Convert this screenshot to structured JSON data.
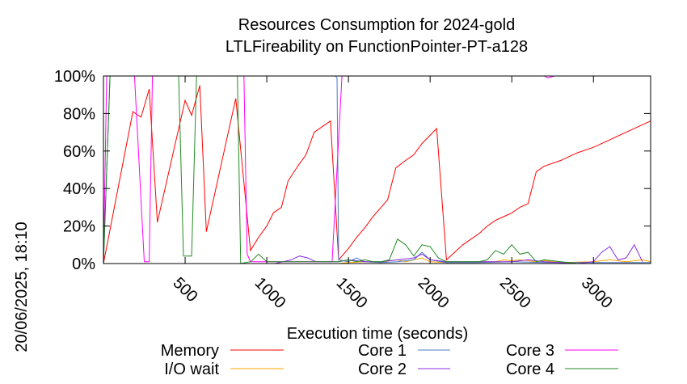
{
  "chart_data": {
    "type": "line",
    "title": [
      "Resources Consumption for 2024-gold",
      "LTLFireability on FunctionPointer-PT-a128"
    ],
    "xlabel": "Execution time (seconds)",
    "ylabel": "",
    "date_label": "20/06/2025, 18:10",
    "xlim": [
      0,
      3350
    ],
    "ylim": [
      0,
      100
    ],
    "xticks": [
      500,
      1000,
      1500,
      2000,
      2500,
      3000
    ],
    "yticks": [
      0,
      20,
      40,
      60,
      80,
      100
    ],
    "ytick_labels": [
      "0%",
      "20%",
      "40%",
      "60%",
      "80%",
      "100%"
    ],
    "grid": false,
    "legend_position": "bottom",
    "series": [
      {
        "name": "Memory",
        "color": "#ff0000",
        "points": [
          [
            0,
            0
          ],
          [
            180,
            81
          ],
          [
            230,
            78
          ],
          [
            280,
            93
          ],
          [
            330,
            22
          ],
          [
            500,
            87
          ],
          [
            540,
            79
          ],
          [
            590,
            95
          ],
          [
            630,
            17
          ],
          [
            810,
            88
          ],
          [
            900,
            7
          ],
          [
            950,
            14
          ],
          [
            1000,
            20
          ],
          [
            1040,
            27
          ],
          [
            1090,
            30
          ],
          [
            1130,
            44
          ],
          [
            1190,
            52
          ],
          [
            1240,
            58
          ],
          [
            1290,
            70
          ],
          [
            1390,
            76
          ],
          [
            1440,
            2
          ],
          [
            1500,
            8
          ],
          [
            1550,
            14
          ],
          [
            1600,
            19
          ],
          [
            1650,
            25
          ],
          [
            1700,
            30
          ],
          [
            1740,
            34
          ],
          [
            1790,
            51
          ],
          [
            1850,
            55
          ],
          [
            1900,
            58
          ],
          [
            1950,
            64
          ],
          [
            2040,
            72
          ],
          [
            2100,
            2
          ],
          [
            2150,
            6
          ],
          [
            2200,
            10
          ],
          [
            2250,
            13
          ],
          [
            2300,
            16
          ],
          [
            2350,
            20
          ],
          [
            2400,
            23
          ],
          [
            2450,
            25
          ],
          [
            2500,
            27
          ],
          [
            2550,
            30
          ],
          [
            2600,
            32
          ],
          [
            2650,
            49
          ],
          [
            2700,
            52
          ],
          [
            2800,
            55
          ],
          [
            2900,
            59
          ],
          [
            3000,
            62
          ],
          [
            3100,
            66
          ],
          [
            3200,
            70
          ],
          [
            3300,
            74
          ],
          [
            3350,
            76
          ]
        ]
      },
      {
        "name": "I/O wait",
        "color": "#ffa500",
        "points": [
          [
            0,
            0
          ],
          [
            1440,
            0
          ],
          [
            1500,
            0.5
          ],
          [
            1600,
            1
          ],
          [
            1700,
            0.5
          ],
          [
            1750,
            1.5
          ],
          [
            1800,
            2
          ],
          [
            1850,
            1
          ],
          [
            1900,
            2
          ],
          [
            1950,
            3
          ],
          [
            2000,
            1
          ],
          [
            2100,
            0.5
          ],
          [
            2300,
            1
          ],
          [
            2400,
            1
          ],
          [
            2450,
            2
          ],
          [
            2500,
            1.5
          ],
          [
            2550,
            2
          ],
          [
            2600,
            1.5
          ],
          [
            2650,
            1
          ],
          [
            2700,
            1.5
          ],
          [
            2800,
            0.5
          ],
          [
            3000,
            1
          ],
          [
            3100,
            2
          ],
          [
            3200,
            1
          ],
          [
            3300,
            2
          ],
          [
            3350,
            1
          ]
        ]
      },
      {
        "name": "Core 1",
        "color": "#4a78c8",
        "points": [
          [
            0,
            0
          ],
          [
            40,
            100
          ],
          [
            1420,
            100
          ],
          [
            1430,
            99
          ],
          [
            1440,
            2
          ],
          [
            1500,
            1
          ],
          [
            1550,
            3
          ],
          [
            1600,
            1
          ],
          [
            1700,
            0.5
          ],
          [
            1800,
            1
          ],
          [
            1900,
            2
          ],
          [
            1950,
            6
          ],
          [
            2000,
            2
          ],
          [
            2100,
            0.5
          ],
          [
            2300,
            0.5
          ],
          [
            2500,
            1
          ],
          [
            2700,
            0.5
          ],
          [
            3000,
            0.5
          ],
          [
            3350,
            0.5
          ]
        ]
      },
      {
        "name": "Core 2",
        "color": "#8b2be2",
        "points": [
          [
            0,
            0
          ],
          [
            1050,
            0
          ],
          [
            1100,
            1
          ],
          [
            1150,
            2
          ],
          [
            1200,
            4
          ],
          [
            1250,
            3
          ],
          [
            1300,
            1
          ],
          [
            1440,
            1
          ],
          [
            1500,
            2
          ],
          [
            1600,
            1
          ],
          [
            1700,
            1
          ],
          [
            1800,
            2
          ],
          [
            1900,
            3
          ],
          [
            1950,
            5
          ],
          [
            2000,
            2
          ],
          [
            2100,
            1
          ],
          [
            2500,
            1
          ],
          [
            2600,
            2
          ],
          [
            2700,
            1
          ],
          [
            2900,
            0
          ],
          [
            3000,
            1
          ],
          [
            3050,
            6
          ],
          [
            3100,
            9
          ],
          [
            3150,
            2
          ],
          [
            3200,
            3
          ],
          [
            3250,
            10
          ],
          [
            3300,
            1
          ]
        ]
      },
      {
        "name": "Core 3",
        "color": "#ff00ff",
        "points": [
          [
            0,
            0
          ],
          [
            20,
            100
          ],
          [
            190,
            100
          ],
          [
            250,
            1
          ],
          [
            280,
            1
          ],
          [
            300,
            100
          ],
          [
            450,
            100
          ],
          [
            860,
            100
          ],
          [
            880,
            5
          ],
          [
            900,
            1
          ],
          [
            1400,
            1
          ],
          [
            1460,
            100
          ],
          [
            2700,
            100
          ],
          [
            2720,
            99
          ],
          [
            2760,
            100
          ],
          [
            3350,
            100
          ]
        ]
      },
      {
        "name": "Core 4",
        "color": "#228b22",
        "points": [
          [
            0,
            0
          ],
          [
            40,
            100
          ],
          [
            460,
            100
          ],
          [
            490,
            4
          ],
          [
            540,
            4
          ],
          [
            570,
            100
          ],
          [
            820,
            100
          ],
          [
            840,
            0
          ],
          [
            900,
            1
          ],
          [
            950,
            5
          ],
          [
            1000,
            1
          ],
          [
            1100,
            1
          ],
          [
            1200,
            1
          ],
          [
            1300,
            1
          ],
          [
            1440,
            1
          ],
          [
            1500,
            2
          ],
          [
            1550,
            1
          ],
          [
            1600,
            2
          ],
          [
            1650,
            1
          ],
          [
            1700,
            1
          ],
          [
            1750,
            2
          ],
          [
            1800,
            13
          ],
          [
            1850,
            10
          ],
          [
            1900,
            4
          ],
          [
            1950,
            10
          ],
          [
            2000,
            9
          ],
          [
            2050,
            3
          ],
          [
            2100,
            1
          ],
          [
            2200,
            1
          ],
          [
            2300,
            1
          ],
          [
            2350,
            2
          ],
          [
            2400,
            7
          ],
          [
            2450,
            5
          ],
          [
            2500,
            10
          ],
          [
            2550,
            5
          ],
          [
            2600,
            6
          ],
          [
            2650,
            1
          ],
          [
            2700,
            2
          ],
          [
            2800,
            1
          ],
          [
            2900,
            0
          ],
          [
            3350,
            0
          ]
        ]
      }
    ]
  }
}
